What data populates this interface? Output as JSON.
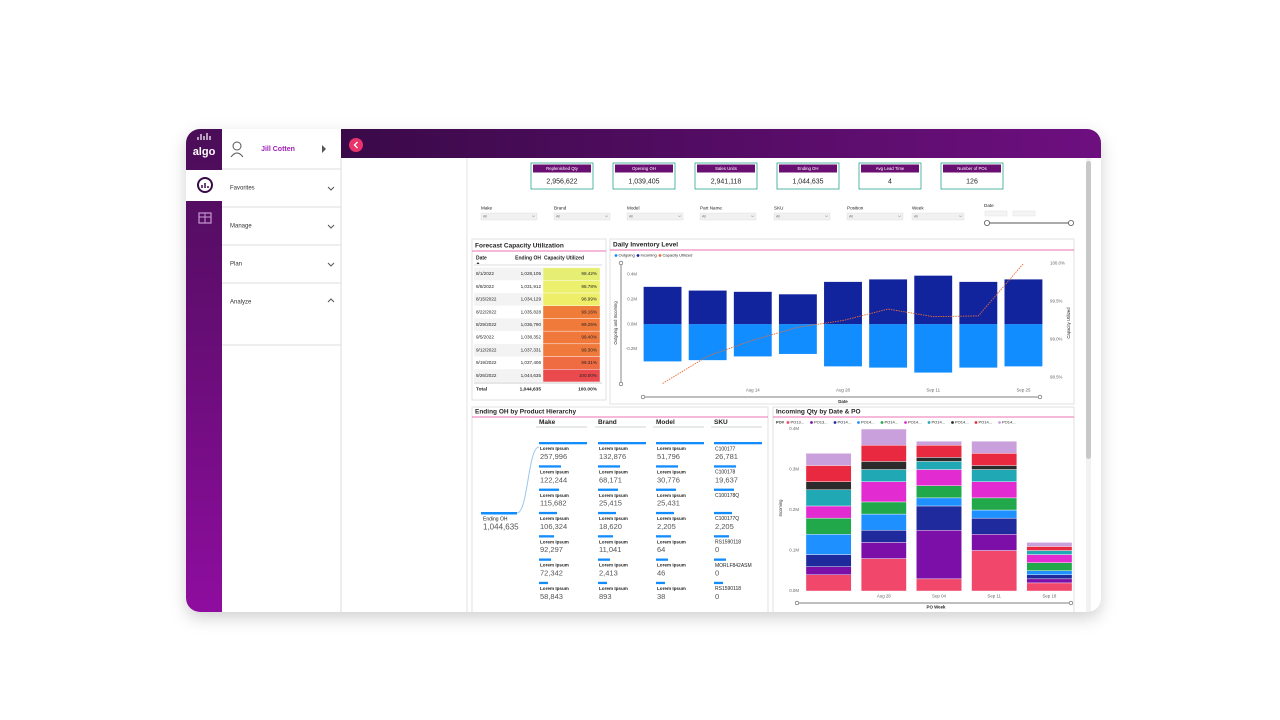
{
  "sidebar": {
    "logo": "algo",
    "user": "Jill Cotten",
    "menu": [
      "Favorites",
      "Manage",
      "Plan",
      "Analyze"
    ]
  },
  "kpis": [
    {
      "label": "Replenished Qty",
      "value": "2,956,622"
    },
    {
      "label": "Opening OH",
      "value": "1,039,405"
    },
    {
      "label": "Sales Units",
      "value": "2,941,118"
    },
    {
      "label": "Ending OH",
      "value": "1,044,635"
    },
    {
      "label": "Avg Lead Time",
      "value": "4"
    },
    {
      "label": "Number of POs",
      "value": "126"
    }
  ],
  "filters": [
    {
      "label": "Make",
      "value": "All"
    },
    {
      "label": "Brand",
      "value": "All"
    },
    {
      "label": "Model",
      "value": "All"
    },
    {
      "label": "Part Name",
      "value": "All"
    },
    {
      "label": "SKU",
      "value": "All"
    },
    {
      "label": "Position",
      "value": "All"
    },
    {
      "label": "Week",
      "value": "All"
    },
    {
      "label": "Date"
    }
  ],
  "capacity_table": {
    "title": "Forecast Capacity Utilization",
    "columns": [
      "Date",
      "Ending OH",
      "Capacity Utilized"
    ],
    "rows": [
      [
        "8/1/2022",
        "1,028,105",
        "98.42%"
      ],
      [
        "8/8/2022",
        "1,031,912",
        "98.78%"
      ],
      [
        "8/15/2022",
        "1,034,129",
        "98.99%"
      ],
      [
        "8/22/2022",
        "1,035,828",
        "99.16%"
      ],
      [
        "8/29/2022",
        "1,036,790",
        "99.25%"
      ],
      [
        "9/5/2022",
        "1,038,352",
        "99.40%"
      ],
      [
        "9/12/2022",
        "1,037,331",
        "99.30%"
      ],
      [
        "9/19/2022",
        "1,037,406",
        "99.31%"
      ],
      [
        "9/26/2022",
        "1,044,635",
        "100.00%"
      ]
    ],
    "colors": [
      "#e6ee74",
      "#ecf06c",
      "#eeee68",
      "#f07c3a",
      "#f07a3a",
      "#f0783b",
      "#ef7a3b",
      "#ef6c42",
      "#ea4a4e"
    ],
    "total": [
      "Total",
      "1,044,635",
      "100.00%"
    ]
  },
  "hierarchy": {
    "title": "Ending OH by Product Hierarchy",
    "root": {
      "label": "Ending OH",
      "value": "1,044,635"
    },
    "levels": [
      {
        "name": "Make",
        "items": [
          {
            "label": "Lorem Ipsum",
            "value": "257,996"
          },
          {
            "label": "Lorem Ipsum",
            "value": "122,244"
          },
          {
            "label": "Lorem Ipsum",
            "value": "115,682"
          },
          {
            "label": "Lorem Ipsum",
            "value": "106,324"
          },
          {
            "label": "Lorem Ipsum",
            "value": "92,297"
          },
          {
            "label": "Lorem Ipsum",
            "value": "72,342"
          },
          {
            "label": "Lorem Ipsum",
            "value": "58,843"
          }
        ]
      },
      {
        "name": "Brand",
        "items": [
          {
            "label": "Lorem Ipsum",
            "value": "132,876"
          },
          {
            "label": "Lorem Ipsum",
            "value": "68,171"
          },
          {
            "label": "Lorem Ipsum",
            "value": "25,415"
          },
          {
            "label": "Lorem Ipsum",
            "value": "18,620"
          },
          {
            "label": "Lorem Ipsum",
            "value": "11,041"
          },
          {
            "label": "Lorem Ipsum",
            "value": "2,413"
          },
          {
            "label": "Lorem Ipsum",
            "value": "893"
          }
        ]
      },
      {
        "name": "Model",
        "items": [
          {
            "label": "Lorem Ipsum",
            "value": "51,796"
          },
          {
            "label": "Lorem Ipsum",
            "value": "30,776"
          },
          {
            "label": "Lorem Ipsum",
            "value": "25,431"
          },
          {
            "label": "Lorem Ipsum",
            "value": "2,205"
          },
          {
            "label": "Lorem Ipsum",
            "value": "64"
          },
          {
            "label": "Lorem Ipsum",
            "value": "46"
          },
          {
            "label": "Lorem Ipsum",
            "value": "38"
          }
        ]
      },
      {
        "name": "SKU",
        "items": [
          {
            "label": "C100177",
            "value": "26,781"
          },
          {
            "label": "C100178",
            "value": "19,637"
          },
          {
            "label": "C100178Q"
          },
          {
            "label": "C100177Q",
            "value": "2,205"
          },
          {
            "label": "RS1590118",
            "value": "0"
          },
          {
            "label": "MORLF842ASM",
            "value": "0"
          },
          {
            "label": "RS1590118",
            "value": "0"
          }
        ]
      }
    ]
  },
  "chart_data": [
    {
      "type": "bar",
      "title": "Daily Inventory Level",
      "x_label": "Date",
      "y_label": "Outgoing and Incoming",
      "y2_label": "Capacity Utilized",
      "categories": [
        null,
        null,
        "Aug 14",
        null,
        "Aug 28",
        null,
        "Sep 11",
        null,
        "Sep 25"
      ],
      "series": [
        {
          "name": "Outgoing",
          "color": "#118dff",
          "values": [
            -300000,
            -290000,
            -260000,
            -240000,
            -340000,
            -350000,
            -390000,
            -350000,
            -340000
          ]
        },
        {
          "name": "Incoming",
          "color": "#12239e",
          "values": [
            300000,
            270000,
            260000,
            240000,
            340000,
            360000,
            390000,
            340000,
            360000
          ]
        },
        {
          "name": "Capacity Utilized",
          "type": "line",
          "axis": "y2",
          "color": "#e66c37",
          "values": [
            98.42,
            98.78,
            98.99,
            99.16,
            99.25,
            99.4,
            99.3,
            99.31,
            100
          ]
        }
      ],
      "ylim": [
        -490000,
        500000
      ],
      "yticks": [
        {
          "value": -200000,
          "label": "-0.2M"
        },
        {
          "value": 0,
          "label": "0.0M"
        },
        {
          "value": 200000,
          "label": "0.2M"
        },
        {
          "value": 400000,
          "label": "0.4M"
        }
      ],
      "y2lim": [
        98.4,
        100.02
      ],
      "y2ticks": [
        {
          "value": 98.5,
          "label": "98.5%"
        },
        {
          "value": 99,
          "label": "99.0%"
        },
        {
          "value": 99.5,
          "label": "99.5%"
        },
        {
          "value": 100,
          "label": "100.0%"
        }
      ],
      "legend": "top-left",
      "grid": false
    },
    {
      "type": "stacked_bar",
      "title": "Incoming Qty by Date & PO",
      "x_label": "PO Week",
      "y_label": "Incoming",
      "legend_title": "PO#",
      "categories": [
        null,
        "Aug 28",
        "Sep 04",
        "Sep 11",
        "Sep 18"
      ],
      "series": [
        {
          "name": "PO13...",
          "color": "#f0476b",
          "values": [
            40000,
            80000,
            30000,
            100000,
            20000
          ]
        },
        {
          "name": "PO13...",
          "color": "#7b0fa8",
          "values": [
            20000,
            40000,
            120000,
            40000,
            10000
          ]
        },
        {
          "name": "PO14...",
          "color": "#1f2a9c",
          "values": [
            30000,
            30000,
            60000,
            40000,
            10000
          ]
        },
        {
          "name": "PO14...",
          "color": "#1e90ff",
          "values": [
            50000,
            40000,
            20000,
            20000,
            10000
          ]
        },
        {
          "name": "PO14...",
          "color": "#21a84a",
          "values": [
            40000,
            30000,
            30000,
            30000,
            20000
          ]
        },
        {
          "name": "PO14...",
          "color": "#e22bd0",
          "values": [
            30000,
            50000,
            40000,
            40000,
            20000
          ]
        },
        {
          "name": "PO14...",
          "color": "#20a9b5",
          "values": [
            40000,
            30000,
            20000,
            30000,
            10000
          ]
        },
        {
          "name": "PO14...",
          "color": "#2b2b2b",
          "values": [
            20000,
            20000,
            10000,
            10000,
            0
          ]
        },
        {
          "name": "PO14...",
          "color": "#e8293f",
          "values": [
            40000,
            40000,
            30000,
            30000,
            10000
          ]
        },
        {
          "name": "PO14...",
          "color": "#c9a0dc",
          "values": [
            30000,
            40000,
            10000,
            30000,
            10000
          ]
        }
      ],
      "ylim": [
        0,
        410000
      ],
      "yticks": [
        {
          "value": 0,
          "label": "0.0M"
        },
        {
          "value": 100000,
          "label": "0.1M"
        },
        {
          "value": 200000,
          "label": "0.2M"
        },
        {
          "value": 300000,
          "label": "0.3M"
        },
        {
          "value": 400000,
          "label": "0.4M"
        }
      ],
      "legend": "top",
      "grid": false
    }
  ]
}
